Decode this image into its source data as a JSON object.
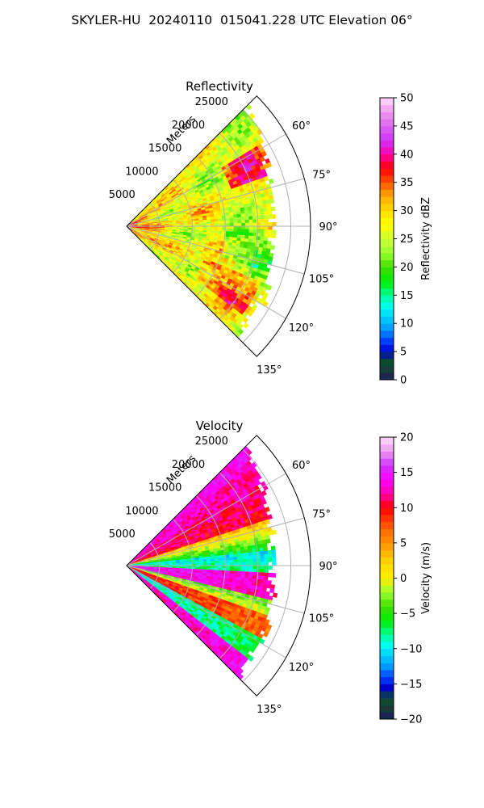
{
  "title": "SKYLER-HU  20240110  015041.228 UTC Elevation 06°",
  "chart_data": [
    {
      "type": "heatmap",
      "projection": "polar-sector",
      "title": "Reflectivity",
      "radial_label": "Meters",
      "radial_ticks": [
        "5000",
        "10000",
        "15000",
        "20000",
        "25000"
      ],
      "radial_range": [
        0,
        28000
      ],
      "angular_ticks": [
        "60°",
        "75°",
        "90°",
        "105°",
        "120°",
        "135°"
      ],
      "angular_range_deg": [
        45,
        135
      ],
      "grid": true,
      "colorbar": {
        "label": "Reflectivity dBZ",
        "range": [
          0,
          50
        ],
        "ticks": [
          "0",
          "5",
          "10",
          "15",
          "20",
          "25",
          "30",
          "35",
          "40",
          "45",
          "50"
        ],
        "stops": [
          {
            "value": 0,
            "color": "#1a1a5e"
          },
          {
            "value": 1.5,
            "color": "#1a3a3a"
          },
          {
            "value": 3.5,
            "color": "#0a5030"
          },
          {
            "value": 5,
            "color": "#0000cc"
          },
          {
            "value": 7,
            "color": "#0044ff"
          },
          {
            "value": 9,
            "color": "#0099ff"
          },
          {
            "value": 11,
            "color": "#00ccff"
          },
          {
            "value": 13,
            "color": "#00ffee"
          },
          {
            "value": 15,
            "color": "#00ff99"
          },
          {
            "value": 17.5,
            "color": "#00ee00"
          },
          {
            "value": 20,
            "color": "#44dd00"
          },
          {
            "value": 22.5,
            "color": "#99ff33"
          },
          {
            "value": 25,
            "color": "#ccff33"
          },
          {
            "value": 27.5,
            "color": "#ffff00"
          },
          {
            "value": 30,
            "color": "#ffdd00"
          },
          {
            "value": 32.5,
            "color": "#ffaa00"
          },
          {
            "value": 35,
            "color": "#ff5500"
          },
          {
            "value": 37.5,
            "color": "#ff0000"
          },
          {
            "value": 40,
            "color": "#ff00aa"
          },
          {
            "value": 42.5,
            "color": "#cc33ff"
          },
          {
            "value": 45,
            "color": "#dd66ee"
          },
          {
            "value": 47.5,
            "color": "#ee99ee"
          },
          {
            "value": 50,
            "color": "#ffddff"
          }
        ]
      }
    },
    {
      "type": "heatmap",
      "projection": "polar-sector",
      "title": "Velocity",
      "radial_label": "Meters",
      "radial_ticks": [
        "5000",
        "10000",
        "15000",
        "20000",
        "25000"
      ],
      "radial_range": [
        0,
        28000
      ],
      "angular_ticks": [
        "60°",
        "75°",
        "90°",
        "105°",
        "120°",
        "135°"
      ],
      "angular_range_deg": [
        45,
        135
      ],
      "grid": true,
      "colorbar": {
        "label": "Velocity (m/s)",
        "range": [
          -20,
          20
        ],
        "ticks": [
          "−20",
          "−15",
          "−10",
          "−5",
          "0",
          "5",
          "10",
          "15",
          "20"
        ],
        "stops": [
          {
            "value": -20,
            "color": "#1a1a5e"
          },
          {
            "value": -18.5,
            "color": "#1a3a3a"
          },
          {
            "value": -17,
            "color": "#0a5030"
          },
          {
            "value": -15.5,
            "color": "#0000cc"
          },
          {
            "value": -14,
            "color": "#0044ff"
          },
          {
            "value": -12.5,
            "color": "#0099ff"
          },
          {
            "value": -11,
            "color": "#00ccff"
          },
          {
            "value": -9.5,
            "color": "#00ffee"
          },
          {
            "value": -8,
            "color": "#00ff99"
          },
          {
            "value": -6,
            "color": "#00ee00"
          },
          {
            "value": -4,
            "color": "#44dd00"
          },
          {
            "value": -2,
            "color": "#99ff33"
          },
          {
            "value": 0,
            "color": "#ffee00"
          },
          {
            "value": 2,
            "color": "#ffdd00"
          },
          {
            "value": 4,
            "color": "#ffaa00"
          },
          {
            "value": 7,
            "color": "#ff6600"
          },
          {
            "value": 10,
            "color": "#ff0000"
          },
          {
            "value": 12,
            "color": "#ff00aa"
          },
          {
            "value": 14,
            "color": "#ff00ff"
          },
          {
            "value": 16,
            "color": "#cc33ff"
          },
          {
            "value": 18,
            "color": "#ee99ee"
          },
          {
            "value": 20,
            "color": "#ffddff"
          }
        ]
      }
    }
  ]
}
